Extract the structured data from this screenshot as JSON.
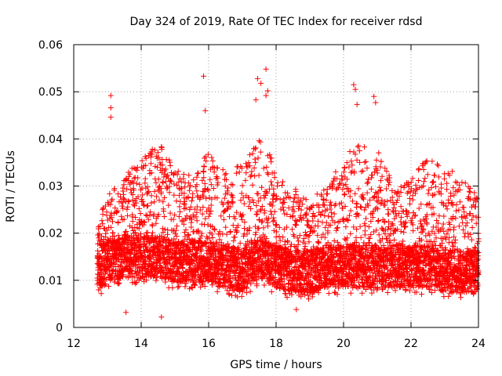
{
  "chart_data": {
    "type": "scatter",
    "title": "Day 324 of 2019, Rate Of TEC Index for receiver rdsd",
    "xlabel": "GPS time / hours",
    "ylabel": "ROTI / TECUs",
    "xlim": [
      12,
      24
    ],
    "ylim": [
      0,
      0.06
    ],
    "x_ticks": [
      12,
      14,
      16,
      18,
      20,
      22,
      24
    ],
    "x_tick_labels": [
      "12",
      "14",
      "16",
      "18",
      "20",
      "22",
      "24"
    ],
    "y_ticks": [
      0,
      0.01,
      0.02,
      0.03,
      0.04,
      0.05,
      0.06
    ],
    "y_tick_labels": [
      "0",
      "0.01",
      "0.02",
      "0.03",
      "0.04",
      "0.05",
      "0.06"
    ],
    "grid": true,
    "marker": "+",
    "series": [
      {
        "name": "ROTI",
        "color": "#ff0000",
        "x_start": 12.7,
        "x_end": 24.0,
        "sample_interval_hours": 0.0125,
        "points_per_epoch": 6,
        "baseline_by_hour": [
          [
            12.7,
            0.012
          ],
          [
            13.0,
            0.014
          ],
          [
            13.5,
            0.015
          ],
          [
            14.0,
            0.015
          ],
          [
            14.5,
            0.015
          ],
          [
            15.0,
            0.014
          ],
          [
            15.5,
            0.014
          ],
          [
            16.0,
            0.014
          ],
          [
            16.5,
            0.013
          ],
          [
            17.0,
            0.012
          ],
          [
            17.5,
            0.015
          ],
          [
            18.0,
            0.013
          ],
          [
            18.5,
            0.012
          ],
          [
            19.0,
            0.012
          ],
          [
            19.5,
            0.013
          ],
          [
            20.0,
            0.013
          ],
          [
            20.5,
            0.013
          ],
          [
            21.0,
            0.013
          ],
          [
            21.5,
            0.013
          ],
          [
            22.0,
            0.013
          ],
          [
            22.5,
            0.013
          ],
          [
            23.0,
            0.012
          ],
          [
            23.5,
            0.012
          ],
          [
            24.0,
            0.012
          ]
        ],
        "upper_envelope_by_hour": [
          [
            12.7,
            0.022
          ],
          [
            13.0,
            0.028
          ],
          [
            13.5,
            0.032
          ],
          [
            14.0,
            0.036
          ],
          [
            14.5,
            0.04
          ],
          [
            15.0,
            0.034
          ],
          [
            15.5,
            0.032
          ],
          [
            16.0,
            0.038
          ],
          [
            16.5,
            0.033
          ],
          [
            17.0,
            0.035
          ],
          [
            17.5,
            0.04
          ],
          [
            17.8,
            0.038
          ],
          [
            18.0,
            0.032
          ],
          [
            18.5,
            0.03
          ],
          [
            19.0,
            0.028
          ],
          [
            19.5,
            0.03
          ],
          [
            20.0,
            0.036
          ],
          [
            20.5,
            0.04
          ],
          [
            21.0,
            0.038
          ],
          [
            21.5,
            0.03
          ],
          [
            22.0,
            0.032
          ],
          [
            22.5,
            0.036
          ],
          [
            23.0,
            0.035
          ],
          [
            23.5,
            0.032
          ],
          [
            24.0,
            0.028
          ]
        ],
        "min_value": 0.0022,
        "max_value": 0.0548,
        "outliers": [
          [
            13.1,
            0.0492
          ],
          [
            13.1,
            0.0466
          ],
          [
            13.1,
            0.0446
          ],
          [
            14.6,
            0.0022
          ],
          [
            15.85,
            0.0533
          ],
          [
            15.9,
            0.046
          ],
          [
            17.45,
            0.0528
          ],
          [
            17.55,
            0.0518
          ],
          [
            17.7,
            0.0548
          ],
          [
            17.75,
            0.0502
          ],
          [
            17.7,
            0.0492
          ],
          [
            17.4,
            0.0483
          ],
          [
            20.3,
            0.0515
          ],
          [
            20.35,
            0.0505
          ],
          [
            20.4,
            0.0473
          ],
          [
            20.9,
            0.049
          ],
          [
            20.95,
            0.0477
          ],
          [
            18.6,
            0.0038
          ],
          [
            13.55,
            0.0032
          ]
        ]
      }
    ]
  }
}
